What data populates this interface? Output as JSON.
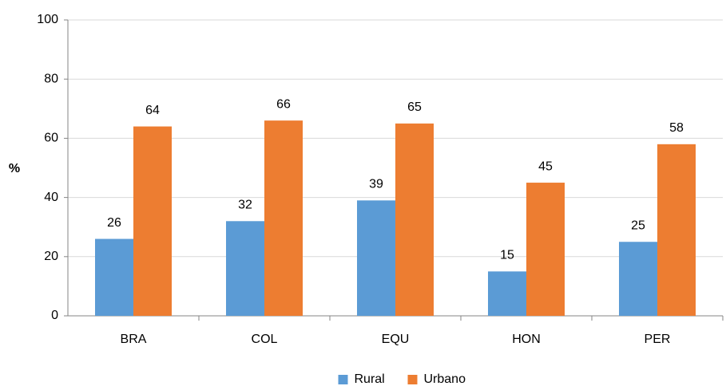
{
  "chart_data": {
    "type": "bar",
    "categories": [
      "BRA",
      "COL",
      "EQU",
      "HON",
      "PER"
    ],
    "series": [
      {
        "name": "Rural",
        "color": "#5b9bd5",
        "values": [
          26,
          32,
          39,
          15,
          25
        ]
      },
      {
        "name": "Urbano",
        "color": "#ed7d31",
        "values": [
          64,
          66,
          65,
          45,
          58
        ]
      }
    ],
    "y_label": "%",
    "ylim": [
      0,
      100
    ],
    "yticks": [
      0,
      20,
      40,
      60,
      80,
      100
    ],
    "grid": true,
    "legend": "bottom"
  }
}
